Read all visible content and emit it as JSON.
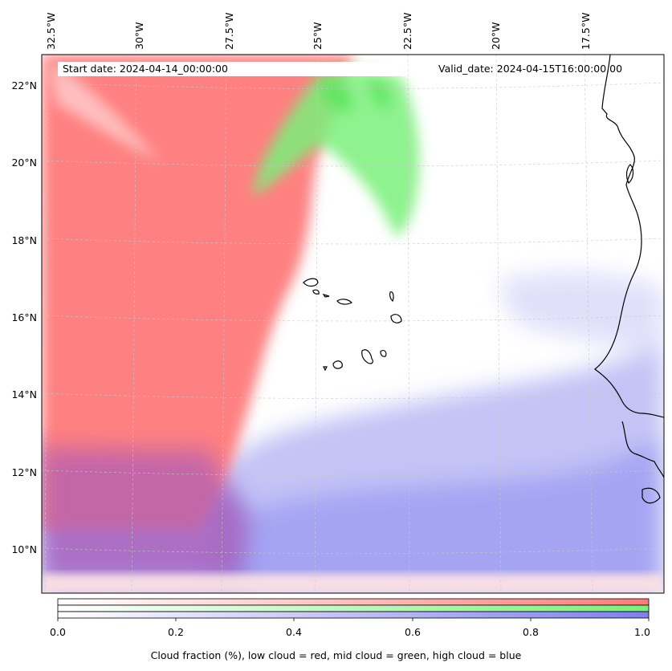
{
  "header": {
    "start_label": "Start date:",
    "start_value": "2024-04-14_00:00:00",
    "valid_label": "Valid_date:",
    "valid_value": "2024-04-15T16:00:00.00"
  },
  "longitude_labels": [
    "32.5°W",
    "30°W",
    "27.5°W",
    "25°W",
    "22.5°W",
    "20°W",
    "17.5°W"
  ],
  "latitude_labels": [
    "22°N",
    "20°N",
    "18°N",
    "16°N",
    "14°N",
    "12°N",
    "10°N"
  ],
  "colorbar": {
    "ticks": [
      "0.0",
      "0.2",
      "0.4",
      "0.6",
      "0.8",
      "1.0"
    ],
    "caption": "Cloud fraction (%), low cloud = red, mid cloud = green, high cloud = blue",
    "colors": {
      "low": "#ff7a7a",
      "mid": "#7af07a",
      "high": "#7f7ff0"
    }
  },
  "layers": [
    {
      "name": "low cloud",
      "color": "#ff7a7a"
    },
    {
      "name": "mid cloud",
      "color": "#7af07a"
    },
    {
      "name": "high cloud",
      "color": "#7f7ff0"
    }
  ]
}
